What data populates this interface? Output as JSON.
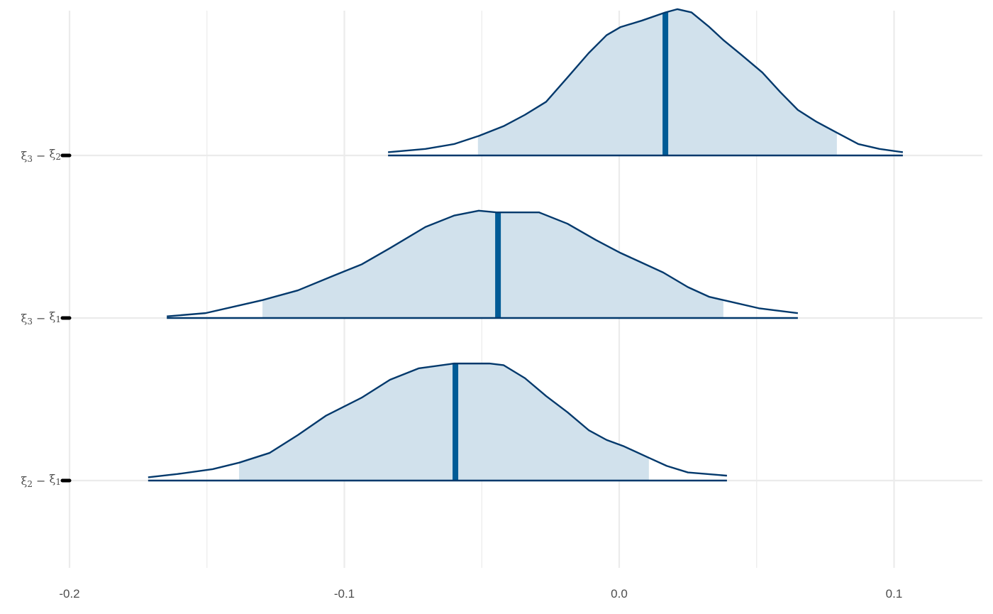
{
  "chart_data": {
    "type": "area",
    "title": "",
    "xlabel": "",
    "ylabel": "",
    "xlim": [
      -0.2,
      0.132
    ],
    "x_ticks": [
      "-0.2",
      "-0.1",
      "0.0",
      "0.1"
    ],
    "x_tick_values": [
      -0.2,
      -0.1,
      0.0,
      0.1
    ],
    "x_minor_grid": [
      -0.15,
      -0.05,
      0.05
    ],
    "grid": true,
    "colors": {
      "fill": "#d1e1ec",
      "outline": "#03396c",
      "median": "#005b96",
      "grid": "#ebebeb",
      "text": "#4d4d4d"
    },
    "series": [
      {
        "name": "ξ3 − ξ2",
        "label_main1": "ξ",
        "label_sub1": "3",
        "label_op": " − ",
        "label_main2": "ξ",
        "label_sub2": "2",
        "median": 0.0168,
        "interval": [
          -0.0514,
          0.0792
        ],
        "x": [
          -0.0841,
          -0.0705,
          -0.0601,
          -0.0511,
          -0.0421,
          -0.0343,
          -0.0266,
          -0.0188,
          -0.0111,
          -0.0046,
          0.0005,
          0.0083,
          0.0168,
          0.0212,
          0.0263,
          0.0328,
          0.0379,
          0.0444,
          0.0521,
          0.0586,
          0.065,
          0.0715,
          0.0792,
          0.087,
          0.0947,
          0.1032
        ],
        "density": [
          0.02,
          0.04,
          0.07,
          0.12,
          0.18,
          0.25,
          0.33,
          0.48,
          0.63,
          0.74,
          0.79,
          0.83,
          0.88,
          0.9,
          0.88,
          0.79,
          0.71,
          0.62,
          0.51,
          0.39,
          0.28,
          0.21,
          0.14,
          0.07,
          0.04,
          0.02
        ]
      },
      {
        "name": "ξ3 − ξ1",
        "label_main1": "ξ",
        "label_sub1": "3",
        "label_op": " − ",
        "label_main2": "ξ",
        "label_sub2": "1",
        "median": -0.0441,
        "interval": [
          -0.1298,
          0.0379
        ],
        "x": [
          -0.1646,
          -0.1505,
          -0.1401,
          -0.1298,
          -0.1169,
          -0.104,
          -0.0937,
          -0.0834,
          -0.0705,
          -0.0601,
          -0.0511,
          -0.0446,
          -0.0292,
          -0.0188,
          -0.0085,
          0.0005,
          0.007,
          0.016,
          0.025,
          0.0328,
          0.0405,
          0.0508,
          0.065
        ],
        "density": [
          0.01,
          0.03,
          0.07,
          0.11,
          0.17,
          0.26,
          0.33,
          0.43,
          0.56,
          0.63,
          0.66,
          0.65,
          0.65,
          0.58,
          0.48,
          0.4,
          0.35,
          0.28,
          0.19,
          0.13,
          0.1,
          0.06,
          0.03
        ]
      },
      {
        "name": "ξ2 − ξ1",
        "label_main1": "ξ",
        "label_sub1": "2",
        "label_op": " − ",
        "label_main2": "ξ",
        "label_sub2": "1",
        "median": -0.0596,
        "interval": [
          -0.1383,
          0.0108
        ],
        "x": [
          -0.1714,
          -0.1608,
          -0.1479,
          -0.1383,
          -0.1272,
          -0.1169,
          -0.1066,
          -0.0937,
          -0.0834,
          -0.073,
          -0.0601,
          -0.055,
          -0.0472,
          -0.0421,
          -0.0343,
          -0.0266,
          -0.0188,
          -0.0111,
          -0.0046,
          0.0018,
          0.0108,
          0.0173,
          0.025,
          0.0392
        ],
        "density": [
          0.02,
          0.04,
          0.07,
          0.11,
          0.17,
          0.28,
          0.4,
          0.51,
          0.62,
          0.69,
          0.72,
          0.72,
          0.72,
          0.71,
          0.63,
          0.52,
          0.42,
          0.31,
          0.25,
          0.21,
          0.14,
          0.09,
          0.05,
          0.03
        ]
      }
    ]
  }
}
